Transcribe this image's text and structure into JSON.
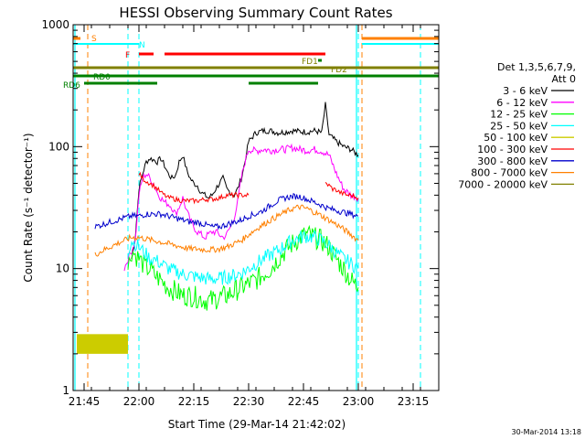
{
  "chart_data": {
    "type": "line",
    "title": "HESSI Observing Summary Count Rates",
    "xlabel": "Start Time (29-Mar-14 21:42:02)",
    "ylabel": "Count Rate (s⁻¹ detector⁻¹)",
    "y_scale": "log",
    "ylim": [
      1,
      1000
    ],
    "xlim": [
      "21:42",
      "23:22"
    ],
    "x_ticks": [
      "21:45",
      "22:00",
      "22:15",
      "22:30",
      "22:45",
      "23:00",
      "23:15"
    ],
    "y_ticks": [
      "1",
      "10",
      "100",
      "1000"
    ],
    "legend_header": [
      "Det 1,3,5,6,7,9,",
      "Att 0"
    ],
    "legend_position": "right",
    "timestamp": "30-Mar-2014 13:18",
    "series": [
      {
        "name": "3 - 6 keV",
        "color": "#000000",
        "x": [
          "21:58",
          "21:59",
          "22:00",
          "22:01",
          "22:02",
          "22:03",
          "22:04",
          "22:05",
          "22:06",
          "22:07",
          "22:08",
          "22:09",
          "22:10",
          "22:11",
          "22:12",
          "22:13",
          "22:14",
          "22:15",
          "22:16",
          "22:17",
          "22:18",
          "22:19",
          "22:20",
          "22:21",
          "22:22",
          "22:23",
          "22:24",
          "22:25",
          "22:26",
          "22:27",
          "22:28",
          "22:29",
          "22:30",
          "22:32",
          "22:34",
          "22:36",
          "22:38",
          "22:40",
          "22:42",
          "22:44",
          "22:46",
          "22:48",
          "22:50",
          "22:51",
          "22:52",
          "22:54",
          "22:56",
          "22:58",
          "23:00"
        ],
        "y": [
          12,
          18,
          45,
          60,
          75,
          80,
          78,
          75,
          80,
          70,
          60,
          55,
          58,
          75,
          85,
          65,
          55,
          50,
          48,
          42,
          40,
          38,
          40,
          45,
          50,
          55,
          45,
          42,
          40,
          45,
          55,
          75,
          110,
          130,
          135,
          135,
          130,
          132,
          135,
          133,
          132,
          135,
          130,
          220,
          125,
          110,
          100,
          95,
          85
        ]
      },
      {
        "name": "6 - 12 keV",
        "color": "#ff00ff",
        "x": [
          "21:56",
          "21:57",
          "21:58",
          "21:59",
          "22:00",
          "22:01",
          "22:02",
          "22:03",
          "22:04",
          "22:05",
          "22:06",
          "22:07",
          "22:08",
          "22:09",
          "22:10",
          "22:11",
          "22:12",
          "22:13",
          "22:14",
          "22:15",
          "22:16",
          "22:17",
          "22:18",
          "22:19",
          "22:20",
          "22:21",
          "22:22",
          "22:23",
          "22:24",
          "22:25",
          "22:26",
          "22:27",
          "22:28",
          "22:29",
          "22:30",
          "22:32",
          "22:34",
          "22:36",
          "22:38",
          "22:40",
          "22:42",
          "22:44",
          "22:46",
          "22:48",
          "22:50",
          "22:52",
          "22:54",
          "22:56",
          "22:58",
          "23:00"
        ],
        "y": [
          10,
          12,
          14,
          17,
          40,
          55,
          60,
          55,
          50,
          42,
          38,
          35,
          34,
          32,
          28,
          32,
          38,
          30,
          25,
          22,
          20,
          19,
          18,
          19,
          20,
          20,
          19,
          18,
          19,
          22,
          26,
          35,
          55,
          75,
          95,
          92,
          95,
          93,
          95,
          95,
          98,
          95,
          93,
          95,
          92,
          85,
          60,
          45,
          40,
          38
        ]
      },
      {
        "name": "12 - 25 keV",
        "color": "#00ff00",
        "x": [
          "21:57",
          "21:58",
          "21:59",
          "22:00",
          "22:01",
          "22:02",
          "22:03",
          "22:04",
          "22:05",
          "22:06",
          "22:07",
          "22:08",
          "22:09",
          "22:10",
          "22:12",
          "22:14",
          "22:16",
          "22:18",
          "22:20",
          "22:22",
          "22:24",
          "22:26",
          "22:28",
          "22:30",
          "22:32",
          "22:34",
          "22:36",
          "22:38",
          "22:40",
          "22:42",
          "22:44",
          "22:46",
          "22:48",
          "22:50",
          "22:52",
          "22:54",
          "22:56",
          "22:58",
          "23:00"
        ],
        "y": [
          10,
          14,
          13,
          12,
          11,
          10,
          10,
          9,
          8.5,
          8,
          7.5,
          7,
          6.8,
          6.5,
          6,
          6,
          5.8,
          5.5,
          5.5,
          5.8,
          6,
          6.5,
          7,
          7.5,
          8,
          9,
          10,
          12,
          14,
          16,
          18,
          19,
          18,
          17,
          15,
          12,
          10,
          8,
          7
        ]
      },
      {
        "name": "25 - 50 keV",
        "color": "#00ffff",
        "x": [
          "21:57",
          "21:58",
          "21:59",
          "22:00",
          "22:01",
          "22:02",
          "22:03",
          "22:04",
          "22:05",
          "22:06",
          "22:07",
          "22:08",
          "22:10",
          "22:12",
          "22:14",
          "22:16",
          "22:18",
          "22:20",
          "22:22",
          "22:24",
          "22:26",
          "22:28",
          "22:30",
          "22:32",
          "22:34",
          "22:36",
          "22:38",
          "22:40",
          "22:42",
          "22:44",
          "22:46",
          "22:48",
          "22:50",
          "22:52",
          "22:54",
          "22:56",
          "22:58",
          "23:00"
        ],
        "y": [
          14,
          17,
          16,
          15,
          14,
          13,
          12,
          12,
          11.5,
          11,
          10.5,
          10,
          9.5,
          9,
          8.8,
          8.5,
          8.3,
          8.2,
          8.3,
          8.5,
          8.8,
          9.2,
          10,
          11,
          12,
          13,
          14,
          15.5,
          17,
          18,
          18.5,
          18,
          17,
          15.5,
          13.5,
          12,
          11,
          10
        ]
      },
      {
        "name": "50 - 100 keV",
        "color": "#cccc00",
        "x": [
          "21:43",
          "21:44",
          "21:45",
          "21:46",
          "21:47",
          "21:48",
          "21:49",
          "21:50",
          "21:51",
          "21:52",
          "21:53",
          "21:54",
          "21:55",
          "21:56",
          "21:57"
        ],
        "y": [
          2.5,
          2.5,
          2.5,
          2.5,
          2.5,
          2.5,
          2.5,
          2.5,
          2.5,
          2.5,
          2.5,
          2.5,
          2.5,
          2.5,
          2.5
        ]
      },
      {
        "name": "100 - 300 keV",
        "color": "#ff0000",
        "x": [
          "22:00",
          "22:01",
          "22:02",
          "22:03",
          "22:04",
          "22:05",
          "22:06",
          "22:07",
          "22:08",
          "22:09",
          "22:10",
          "22:12",
          "22:14",
          "22:16",
          "22:18",
          "22:20",
          "22:22",
          "22:24",
          "22:26",
          "22:28",
          "22:29",
          "22:30"
        ],
        "y": [
          60,
          55,
          52,
          50,
          48,
          45,
          42,
          40,
          38,
          38,
          37,
          36,
          36,
          36,
          37,
          37,
          38,
          40,
          40,
          40,
          40,
          40
        ],
        "x2": [
          "22:51",
          "22:52",
          "22:53",
          "22:54",
          "22:55",
          "22:56",
          "22:57",
          "22:58",
          "22:59",
          "23:00"
        ],
        "y2": [
          50,
          48,
          45,
          44,
          42,
          41,
          40,
          40,
          39,
          38
        ]
      },
      {
        "name": "300 - 800 keV",
        "color": "#0000cc",
        "x": [
          "21:48",
          "21:50",
          "21:52",
          "21:54",
          "21:56",
          "21:58",
          "22:00",
          "22:02",
          "22:04",
          "22:06",
          "22:08",
          "22:10",
          "22:12",
          "22:14",
          "22:16",
          "22:18",
          "22:20",
          "22:22",
          "22:24",
          "22:26",
          "22:28",
          "22:30",
          "22:32",
          "22:34",
          "22:36",
          "22:38",
          "22:40",
          "22:42",
          "22:44",
          "22:46",
          "22:48",
          "22:50",
          "22:52",
          "22:54",
          "22:56",
          "22:58",
          "23:00"
        ],
        "y": [
          22,
          23,
          24,
          25,
          26,
          27,
          27,
          28,
          28,
          28,
          27,
          26,
          25,
          24,
          24,
          23,
          22,
          22,
          23,
          24,
          25,
          27,
          28,
          30,
          33,
          36,
          38,
          39,
          39,
          37,
          35,
          33,
          31,
          30,
          29,
          28,
          27
        ]
      },
      {
        "name": "800 - 7000 keV",
        "color": "#ff8000",
        "x": [
          "21:48",
          "21:50",
          "21:52",
          "21:54",
          "21:56",
          "21:58",
          "22:00",
          "22:02",
          "22:04",
          "22:06",
          "22:08",
          "22:10",
          "22:12",
          "22:14",
          "22:16",
          "22:18",
          "22:20",
          "22:22",
          "22:24",
          "22:26",
          "22:28",
          "22:30",
          "22:32",
          "22:34",
          "22:36",
          "22:38",
          "22:40",
          "22:42",
          "22:44",
          "22:46",
          "22:48",
          "22:50",
          "22:52",
          "22:54",
          "22:56",
          "22:58",
          "23:00"
        ],
        "y": [
          13,
          14,
          15,
          16,
          17,
          18,
          18,
          17.5,
          17,
          16.5,
          16,
          15.5,
          15,
          14.5,
          14.5,
          14.3,
          14.3,
          14.5,
          15,
          16,
          17,
          19,
          21,
          23,
          25,
          27,
          29,
          31,
          32,
          31,
          29,
          27,
          25,
          23,
          21,
          19,
          17
        ]
      },
      {
        "name": "7000 - 20000 keV",
        "color": "#808000",
        "x": [
          "21:42",
          "23:22"
        ],
        "y": [
          0,
          0
        ]
      }
    ],
    "flags": [
      {
        "label": "S",
        "color": "#ff8000"
      },
      {
        "label": "N",
        "color": "#00ffff"
      },
      {
        "label": "F",
        "color": "#ff0000"
      },
      {
        "label": "FD1",
        "color": "#808000"
      },
      {
        "label": "FD2",
        "color": "#808000"
      },
      {
        "label": "RD0",
        "color": "#008000"
      },
      {
        "label": "RD6",
        "color": "#008000"
      }
    ]
  }
}
